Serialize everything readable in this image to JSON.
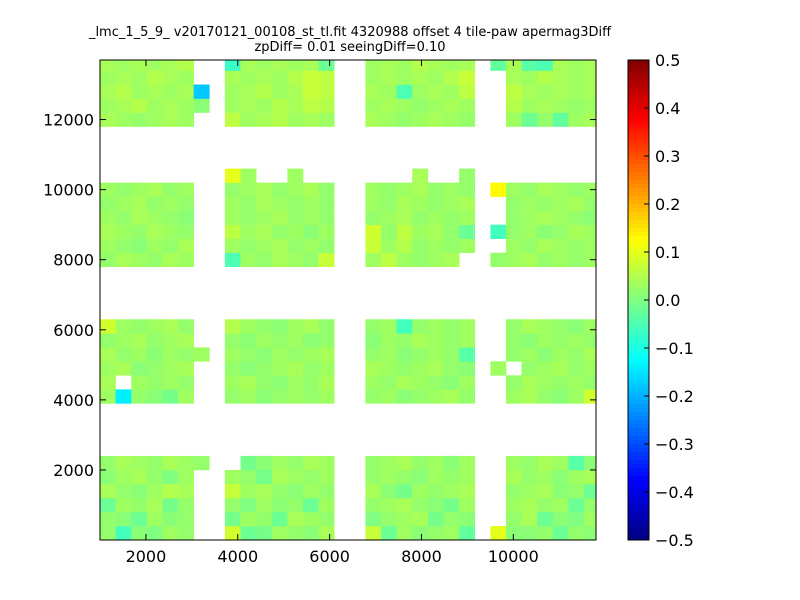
{
  "chart_data": {
    "type": "heatmap",
    "title": "_lmc_1_5_9_ v20170121_00108_st_tl.fit 4320988 offset 4 tile-paw apermag3Diff",
    "subtitle": "zpDiff= 0.01 seeingDiff=0.10",
    "colormap": "jet",
    "xlim": [
      1000,
      11800
    ],
    "ylim": [
      0,
      13700
    ],
    "xticks": [
      2000,
      4000,
      6000,
      8000,
      10000
    ],
    "yticks": [
      2000,
      4000,
      6000,
      8000,
      10000,
      12000
    ],
    "colorbar": {
      "min": -0.5,
      "max": 0.5,
      "ticks": [
        -0.5,
        -0.4,
        -0.3,
        -0.2,
        -0.1,
        0.0,
        0.1,
        0.2,
        0.3,
        0.4,
        0.5
      ],
      "tick_labels": [
        "−0.5",
        "−0.4",
        "−0.3",
        "−0.2",
        "−0.1",
        "0.0",
        "0.1",
        "0.2",
        "0.3",
        "0.4",
        "0.5"
      ]
    },
    "cell_size": [
      340,
      400
    ],
    "x_columns": [
      1000,
      1340,
      1680,
      2020,
      2360,
      2700,
      3040,
      3380,
      3720,
      4060,
      4400,
      4740,
      5080,
      5420,
      5760,
      6100,
      6440,
      6780,
      7120,
      7460,
      7800,
      8140,
      8480,
      8820,
      9160,
      9500,
      9840,
      10180,
      10520,
      10860,
      11200,
      11540
    ],
    "y_rows": [
      0,
      400,
      800,
      1200,
      1600,
      2000,
      3900,
      4300,
      4700,
      5100,
      5500,
      5900,
      7800,
      8200,
      8600,
      9000,
      9400,
      9800,
      10200,
      11800,
      12200,
      12600,
      13000,
      13400
    ],
    "values": [
      [
        0.02,
        -0.06,
        0.01,
        0.0,
        0.03,
        0.02,
        null,
        null,
        0.08,
        -0.02,
        -0.01,
        0.03,
        0.02,
        0.01,
        0.04,
        null,
        null,
        0.07,
        -0.02,
        0.03,
        0.01,
        0.02,
        0.03,
        -0.03,
        null,
        0.1,
        0.01,
        0.01,
        0.02,
        -0.02,
        0.02,
        0.01
      ],
      [
        0.02,
        0.01,
        -0.02,
        0.03,
        0.01,
        0.02,
        null,
        null,
        -0.01,
        0.03,
        0.02,
        -0.02,
        0.04,
        0.03,
        0.02,
        null,
        null,
        0.0,
        0.02,
        0.03,
        0.04,
        -0.01,
        0.02,
        0.01,
        null,
        null,
        0.02,
        0.04,
        -0.02,
        0.01,
        0.0,
        0.03
      ],
      [
        -0.02,
        0.03,
        0.02,
        0.04,
        -0.01,
        0.02,
        null,
        null,
        0.02,
        0.0,
        0.03,
        0.01,
        0.02,
        -0.02,
        0.03,
        null,
        null,
        0.02,
        0.03,
        0.04,
        0.02,
        0.01,
        -0.01,
        0.03,
        null,
        null,
        0.03,
        0.04,
        0.02,
        0.03,
        -0.02,
        0.02
      ],
      [
        0.04,
        0.02,
        0.01,
        0.03,
        0.05,
        0.04,
        null,
        null,
        0.07,
        0.03,
        0.04,
        0.02,
        0.01,
        0.03,
        0.02,
        null,
        null,
        0.04,
        0.01,
        -0.01,
        0.03,
        0.02,
        0.03,
        0.04,
        null,
        null,
        0.02,
        0.03,
        0.04,
        0.01,
        0.02,
        -0.02
      ],
      [
        0.01,
        0.03,
        0.04,
        0.02,
        0.0,
        0.03,
        null,
        null,
        0.03,
        0.02,
        -0.01,
        0.04,
        0.03,
        0.02,
        0.03,
        null,
        null,
        0.02,
        0.03,
        0.02,
        0.01,
        0.03,
        0.02,
        0.03,
        null,
        null,
        0.04,
        0.02,
        0.03,
        0.01,
        0.03,
        0.04
      ],
      [
        0.02,
        0.04,
        0.03,
        0.02,
        0.04,
        0.03,
        0.02,
        null,
        null,
        -0.01,
        0.01,
        0.03,
        0.02,
        0.04,
        0.03,
        null,
        null,
        0.02,
        0.03,
        0.04,
        0.02,
        0.03,
        0.01,
        0.03,
        null,
        null,
        0.03,
        0.02,
        0.04,
        0.03,
        -0.04,
        0.01
      ],
      [
        0.03,
        -0.14,
        0.02,
        0.01,
        -0.01,
        0.03,
        null,
        null,
        0.02,
        0.03,
        0.01,
        0.02,
        0.03,
        0.02,
        0.03,
        null,
        null,
        0.02,
        0.03,
        0.01,
        0.02,
        0.03,
        0.04,
        0.02,
        null,
        null,
        0.03,
        0.04,
        0.02,
        0.01,
        0.03,
        0.08
      ],
      [
        0.04,
        null,
        0.03,
        0.02,
        0.03,
        0.02,
        null,
        null,
        0.03,
        0.04,
        0.02,
        0.01,
        0.03,
        0.02,
        0.04,
        null,
        null,
        0.03,
        0.02,
        0.04,
        0.03,
        0.02,
        0.01,
        0.03,
        null,
        null,
        0.02,
        0.04,
        0.03,
        0.02,
        0.03,
        0.02
      ],
      [
        0.03,
        0.04,
        0.01,
        0.02,
        0.03,
        0.04,
        null,
        null,
        0.02,
        0.01,
        0.02,
        0.03,
        0.04,
        0.02,
        0.03,
        null,
        null,
        0.04,
        0.03,
        0.02,
        0.03,
        0.04,
        0.02,
        0.01,
        null,
        0.03,
        null,
        0.02,
        0.03,
        0.04,
        0.02,
        0.03
      ],
      [
        0.04,
        0.02,
        0.03,
        0.01,
        0.03,
        0.02,
        0.03,
        null,
        0.03,
        0.02,
        0.01,
        0.03,
        0.02,
        0.03,
        0.04,
        null,
        null,
        0.02,
        0.03,
        0.01,
        0.02,
        0.03,
        0.02,
        -0.04,
        null,
        null,
        0.02,
        0.03,
        0.01,
        0.03,
        0.02,
        0.04
      ],
      [
        0.02,
        0.03,
        0.04,
        0.02,
        0.03,
        0.04,
        null,
        null,
        0.02,
        0.01,
        0.03,
        0.02,
        0.03,
        0.01,
        0.02,
        null,
        null,
        0.01,
        0.03,
        0.02,
        0.04,
        0.03,
        0.02,
        0.03,
        null,
        null,
        0.02,
        0.01,
        0.03,
        0.02,
        0.03,
        0.02
      ],
      [
        0.08,
        0.03,
        0.02,
        0.03,
        0.04,
        0.02,
        null,
        null,
        0.05,
        0.03,
        0.02,
        0.01,
        0.03,
        0.04,
        0.02,
        null,
        null,
        0.02,
        0.03,
        -0.06,
        0.02,
        0.03,
        0.02,
        0.03,
        null,
        null,
        0.02,
        0.04,
        0.03,
        0.02,
        0.01,
        0.03
      ],
      [
        0.02,
        0.04,
        0.03,
        0.02,
        0.04,
        0.03,
        null,
        null,
        -0.05,
        0.03,
        0.02,
        0.04,
        0.03,
        0.02,
        0.07,
        null,
        null,
        0.03,
        0.06,
        0.03,
        0.02,
        0.03,
        0.04,
        null,
        null,
        0.02,
        0.03,
        0.04,
        0.02,
        0.03,
        0.02,
        0.03
      ],
      [
        0.03,
        0.02,
        0.01,
        0.03,
        0.02,
        0.04,
        null,
        null,
        0.03,
        0.02,
        0.03,
        0.04,
        0.02,
        0.03,
        0.02,
        null,
        null,
        0.07,
        0.03,
        0.05,
        0.02,
        0.03,
        0.02,
        0.03,
        null,
        null,
        0.03,
        0.02,
        0.04,
        0.03,
        0.02,
        0.03
      ],
      [
        0.04,
        0.03,
        0.02,
        0.04,
        0.03,
        0.02,
        null,
        null,
        0.06,
        0.03,
        0.04,
        0.02,
        0.03,
        0.01,
        0.03,
        null,
        null,
        0.08,
        0.02,
        0.06,
        0.03,
        0.04,
        0.02,
        -0.02,
        null,
        -0.06,
        0.02,
        0.03,
        0.01,
        0.02,
        0.04,
        0.03
      ],
      [
        0.03,
        0.02,
        0.04,
        0.03,
        0.02,
        0.01,
        null,
        null,
        0.03,
        0.02,
        0.03,
        0.04,
        0.02,
        0.03,
        0.02,
        null,
        null,
        0.02,
        0.03,
        0.04,
        0.02,
        0.03,
        0.02,
        0.03,
        null,
        null,
        0.02,
        0.03,
        0.04,
        0.03,
        0.02,
        0.01
      ],
      [
        0.02,
        0.03,
        0.04,
        0.02,
        0.03,
        0.02,
        null,
        null,
        0.03,
        0.02,
        0.04,
        0.03,
        0.02,
        0.03,
        0.02,
        null,
        null,
        0.03,
        0.02,
        0.04,
        0.03,
        0.02,
        0.03,
        0.04,
        null,
        null,
        0.02,
        0.03,
        0.02,
        0.03,
        0.04,
        0.02
      ],
      [
        0.03,
        0.02,
        0.03,
        0.04,
        0.02,
        0.03,
        null,
        null,
        0.02,
        0.03,
        0.04,
        0.02,
        0.03,
        0.04,
        0.02,
        null,
        null,
        0.03,
        0.02,
        0.03,
        0.04,
        0.02,
        0.03,
        0.02,
        null,
        0.13,
        0.03,
        0.02,
        0.04,
        0.03,
        0.02,
        0.03
      ],
      [
        null,
        null,
        null,
        null,
        null,
        null,
        null,
        null,
        0.1,
        0.03,
        null,
        null,
        0.03,
        null,
        null,
        null,
        null,
        null,
        null,
        null,
        0.04,
        null,
        null,
        0.02,
        null,
        null,
        null,
        null,
        null,
        null,
        null,
        null
      ],
      [
        0.04,
        0.03,
        0.02,
        0.03,
        0.04,
        0.03,
        null,
        null,
        0.06,
        0.03,
        0.04,
        0.05,
        0.03,
        0.04,
        0.03,
        null,
        null,
        0.04,
        0.03,
        0.02,
        0.03,
        0.04,
        0.03,
        0.02,
        null,
        null,
        0.03,
        -0.02,
        0.02,
        -0.03,
        0.03,
        0.04
      ],
      [
        0.03,
        0.04,
        0.05,
        0.03,
        0.04,
        0.03,
        0.01,
        null,
        0.03,
        0.04,
        0.03,
        0.05,
        0.04,
        0.06,
        0.05,
        null,
        null,
        0.03,
        0.04,
        0.03,
        0.02,
        0.03,
        0.04,
        0.03,
        null,
        null,
        0.05,
        0.03,
        0.04,
        0.03,
        0.02,
        0.03
      ],
      [
        0.04,
        0.05,
        0.03,
        0.04,
        0.03,
        0.04,
        -0.18,
        null,
        0.03,
        0.04,
        0.05,
        0.03,
        0.04,
        0.07,
        0.06,
        null,
        null,
        0.04,
        0.03,
        -0.05,
        0.03,
        0.04,
        0.03,
        0.06,
        null,
        null,
        0.06,
        0.04,
        0.03,
        0.04,
        0.03,
        0.04
      ],
      [
        0.03,
        0.04,
        0.03,
        0.05,
        0.04,
        0.03,
        null,
        null,
        0.04,
        0.03,
        0.04,
        0.03,
        0.05,
        0.07,
        0.06,
        null,
        null,
        0.03,
        0.04,
        0.03,
        0.04,
        0.03,
        0.05,
        0.07,
        null,
        null,
        0.04,
        0.03,
        0.05,
        0.04,
        0.03,
        0.04
      ],
      [
        0.04,
        0.03,
        0.04,
        0.03,
        0.04,
        0.05,
        null,
        null,
        -0.07,
        0.04,
        0.03,
        0.04,
        0.03,
        0.04,
        -0.02,
        null,
        null,
        0.03,
        0.04,
        0.03,
        0.05,
        0.04,
        0.03,
        0.04,
        null,
        -0.03,
        0.04,
        -0.04,
        -0.05,
        0.04,
        0.03,
        0.04
      ]
    ]
  }
}
